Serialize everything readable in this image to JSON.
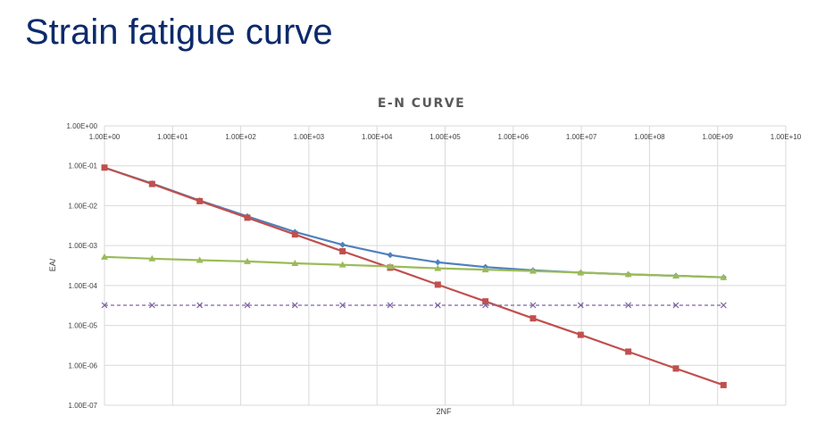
{
  "slide": {
    "title": "Strain fatigue curve"
  },
  "chart_data": {
    "type": "line",
    "title": "E-N CURVE",
    "xlabel": "2NF",
    "ylabel": "EA/",
    "x_scale": "log",
    "y_scale": "log",
    "xlim": [
      1,
      10000000000
    ],
    "ylim": [
      1e-07,
      1
    ],
    "x_ticks": [
      "1.00E+00",
      "1.00E+01",
      "1.00E+02",
      "1.00E+03",
      "1.00E+04",
      "1.00E+05",
      "1.00E+06",
      "1.00E+07",
      "1.00E+08",
      "1.00E+09",
      "1.00E+10"
    ],
    "y_ticks": [
      "1.00E+00",
      "1.00E-01",
      "1.00E-02",
      "1.00E-03",
      "1.00E-04",
      "1.00E-05",
      "1.00E-06",
      "1.00E-07"
    ],
    "x_axis_position": "top",
    "grid": true,
    "legend": "none",
    "x": [
      1,
      5,
      25,
      125,
      625,
      3125,
      15625,
      78125,
      390625,
      1953125,
      9765625,
      48828125,
      244140625,
      1220703125
    ],
    "series": [
      {
        "color": "#4f81bd",
        "marker": "diamond",
        "line": "solid",
        "values": [
          0.09,
          0.036,
          0.0135,
          0.0054,
          0.0022,
          0.00105,
          0.00058,
          0.00038,
          0.00029,
          0.00024,
          0.00021,
          0.00019,
          0.000175,
          0.00016
        ]
      },
      {
        "color": "#c0504d",
        "marker": "square",
        "line": "solid",
        "values": [
          0.09,
          0.035,
          0.013,
          0.005,
          0.0019,
          0.00072,
          0.00028,
          0.000105,
          4e-05,
          1.5e-05,
          5.8e-06,
          2.2e-06,
          8.3e-07,
          3.2e-07
        ]
      },
      {
        "color": "#9bbb59",
        "marker": "triangle",
        "line": "solid",
        "values": [
          0.00052,
          0.00047,
          0.00043,
          0.0004,
          0.00036,
          0.00033,
          0.0003,
          0.00027,
          0.00025,
          0.00023,
          0.00021,
          0.00019,
          0.000175,
          0.00016
        ]
      },
      {
        "color": "#8064a2",
        "marker": "x",
        "line": "dashed",
        "values": [
          3.2e-05,
          3.2e-05,
          3.2e-05,
          3.2e-05,
          3.2e-05,
          3.2e-05,
          3.2e-05,
          3.2e-05,
          3.2e-05,
          3.2e-05,
          3.2e-05,
          3.2e-05,
          3.2e-05,
          3.2e-05
        ]
      }
    ]
  }
}
